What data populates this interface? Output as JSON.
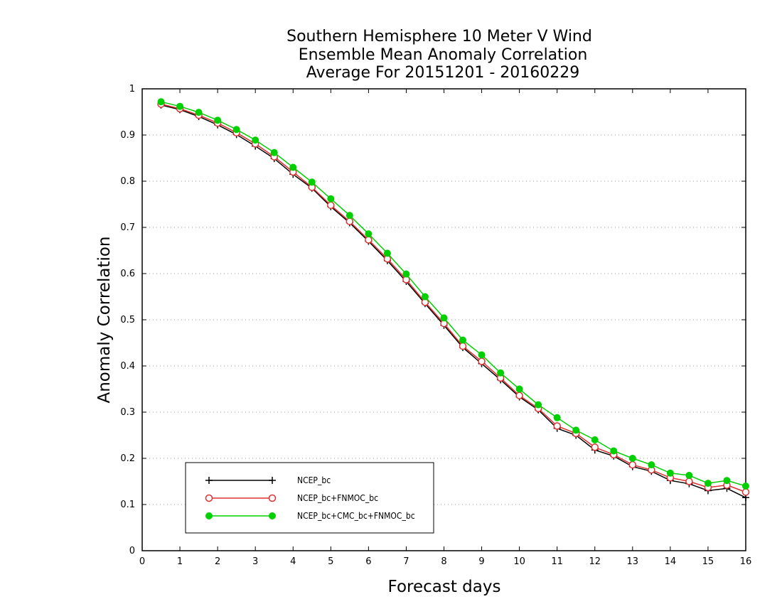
{
  "chart_data": {
    "type": "line",
    "title": [
      "Southern Hemisphere 10 Meter V Wind",
      "Ensemble Mean Anomaly Correlation",
      "Average For 20151201 - 20160229"
    ],
    "xlabel": "Forecast days",
    "ylabel": "Anomaly Correlation",
    "xlim": [
      0,
      16
    ],
    "ylim": [
      0,
      1
    ],
    "xticks": [
      "0",
      "1",
      "2",
      "3",
      "4",
      "5",
      "6",
      "7",
      "8",
      "9",
      "10",
      "11",
      "12",
      "13",
      "14",
      "15",
      "16"
    ],
    "yticks": [
      "0",
      "0.1",
      "0.2",
      "0.3",
      "0.4",
      "0.5",
      "0.6",
      "0.7",
      "0.8",
      "0.9",
      "1"
    ],
    "grid": "horizontal dotted",
    "legend_position": "bottom-left",
    "x": [
      0.5,
      1,
      1.5,
      2,
      2.5,
      3,
      3.5,
      4,
      4.5,
      5,
      5.5,
      6,
      6.5,
      7,
      7.5,
      8,
      8.5,
      9,
      9.5,
      10,
      10.5,
      11,
      11.5,
      12,
      12.5,
      13,
      13.5,
      14,
      14.5,
      15,
      15.5,
      16
    ],
    "series": [
      {
        "name": "NCEP_bc",
        "color": "#000000",
        "marker": "plus",
        "values": [
          0.965,
          0.955,
          0.94,
          0.922,
          0.901,
          0.876,
          0.849,
          0.815,
          0.785,
          0.745,
          0.71,
          0.67,
          0.628,
          0.583,
          0.535,
          0.488,
          0.44,
          0.405,
          0.37,
          0.333,
          0.305,
          0.265,
          0.25,
          0.218,
          0.205,
          0.182,
          0.172,
          0.152,
          0.145,
          0.13,
          0.135,
          0.115
        ]
      },
      {
        "name": "NCEP_bc+FNMOC_bc",
        "color": "#e03030",
        "marker": "open-circle",
        "values": [
          0.967,
          0.957,
          0.943,
          0.926,
          0.905,
          0.881,
          0.853,
          0.82,
          0.787,
          0.748,
          0.713,
          0.673,
          0.632,
          0.587,
          0.538,
          0.492,
          0.443,
          0.41,
          0.374,
          0.336,
          0.308,
          0.27,
          0.254,
          0.224,
          0.208,
          0.186,
          0.175,
          0.158,
          0.15,
          0.137,
          0.142,
          0.127
        ]
      },
      {
        "name": "NCEP_bc+CMC_bc+FNMOC_bc",
        "color": "#00d000",
        "marker": "filled-circle",
        "values": [
          0.972,
          0.962,
          0.949,
          0.932,
          0.912,
          0.889,
          0.862,
          0.83,
          0.798,
          0.762,
          0.726,
          0.686,
          0.644,
          0.599,
          0.55,
          0.504,
          0.456,
          0.424,
          0.385,
          0.35,
          0.316,
          0.288,
          0.261,
          0.24,
          0.216,
          0.2,
          0.186,
          0.168,
          0.163,
          0.146,
          0.152,
          0.14
        ]
      }
    ]
  }
}
